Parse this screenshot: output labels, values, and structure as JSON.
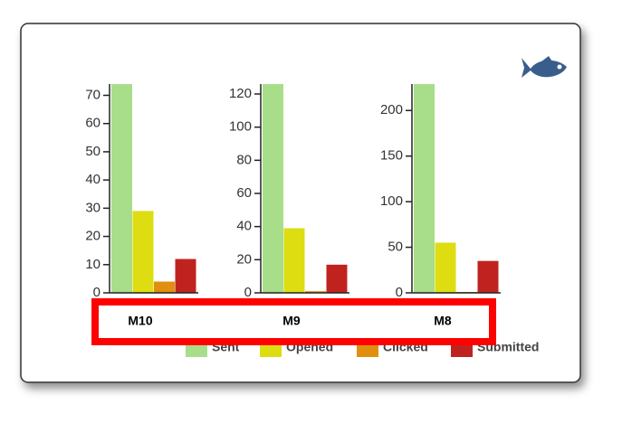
{
  "legend": {
    "entries": [
      {
        "name": "Sent",
        "color": "#a8dd8a"
      },
      {
        "name": "Opened",
        "color": "#dddd11"
      },
      {
        "name": "Clicked",
        "color": "#e0900e"
      },
      {
        "name": "Submitted",
        "color": "#c0231f"
      }
    ]
  },
  "chart_data": [
    {
      "type": "bar",
      "label": "M10",
      "values": [
        74,
        29,
        4,
        12
      ],
      "ylim": [
        0,
        74
      ],
      "yticks": [
        0,
        10,
        20,
        30,
        40,
        50,
        60,
        70
      ]
    },
    {
      "type": "bar",
      "label": "M9",
      "values": [
        126,
        39,
        1,
        17
      ],
      "ylim": [
        0,
        126
      ],
      "yticks": [
        0,
        20,
        40,
        60,
        80,
        100,
        120
      ]
    },
    {
      "type": "bar",
      "label": "M8",
      "values": [
        229,
        55,
        1,
        35
      ],
      "ylim": [
        0,
        229
      ],
      "yticks": [
        0,
        50,
        100,
        150,
        200
      ]
    }
  ]
}
